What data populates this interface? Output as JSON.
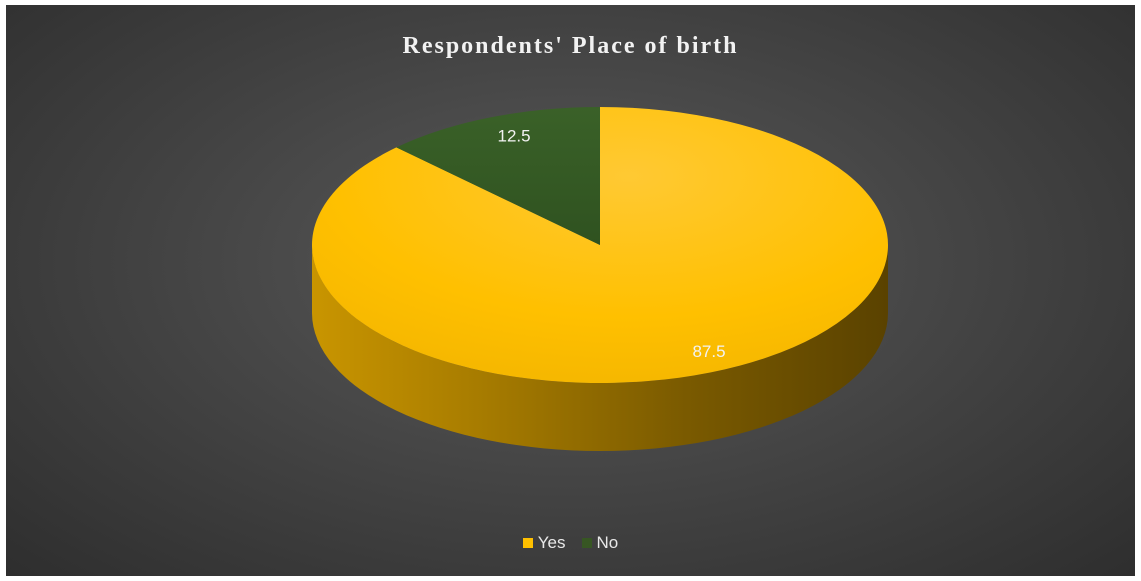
{
  "chart_data": {
    "type": "pie",
    "title": "Respondents' Place of birth",
    "categories": [
      "Yes",
      "No"
    ],
    "values": [
      87.5,
      12.5
    ],
    "colors": [
      "#FFC000",
      "#375623"
    ],
    "data_labels": [
      "87.5",
      "12.5"
    ],
    "legend": "bottom",
    "style": "3d"
  }
}
